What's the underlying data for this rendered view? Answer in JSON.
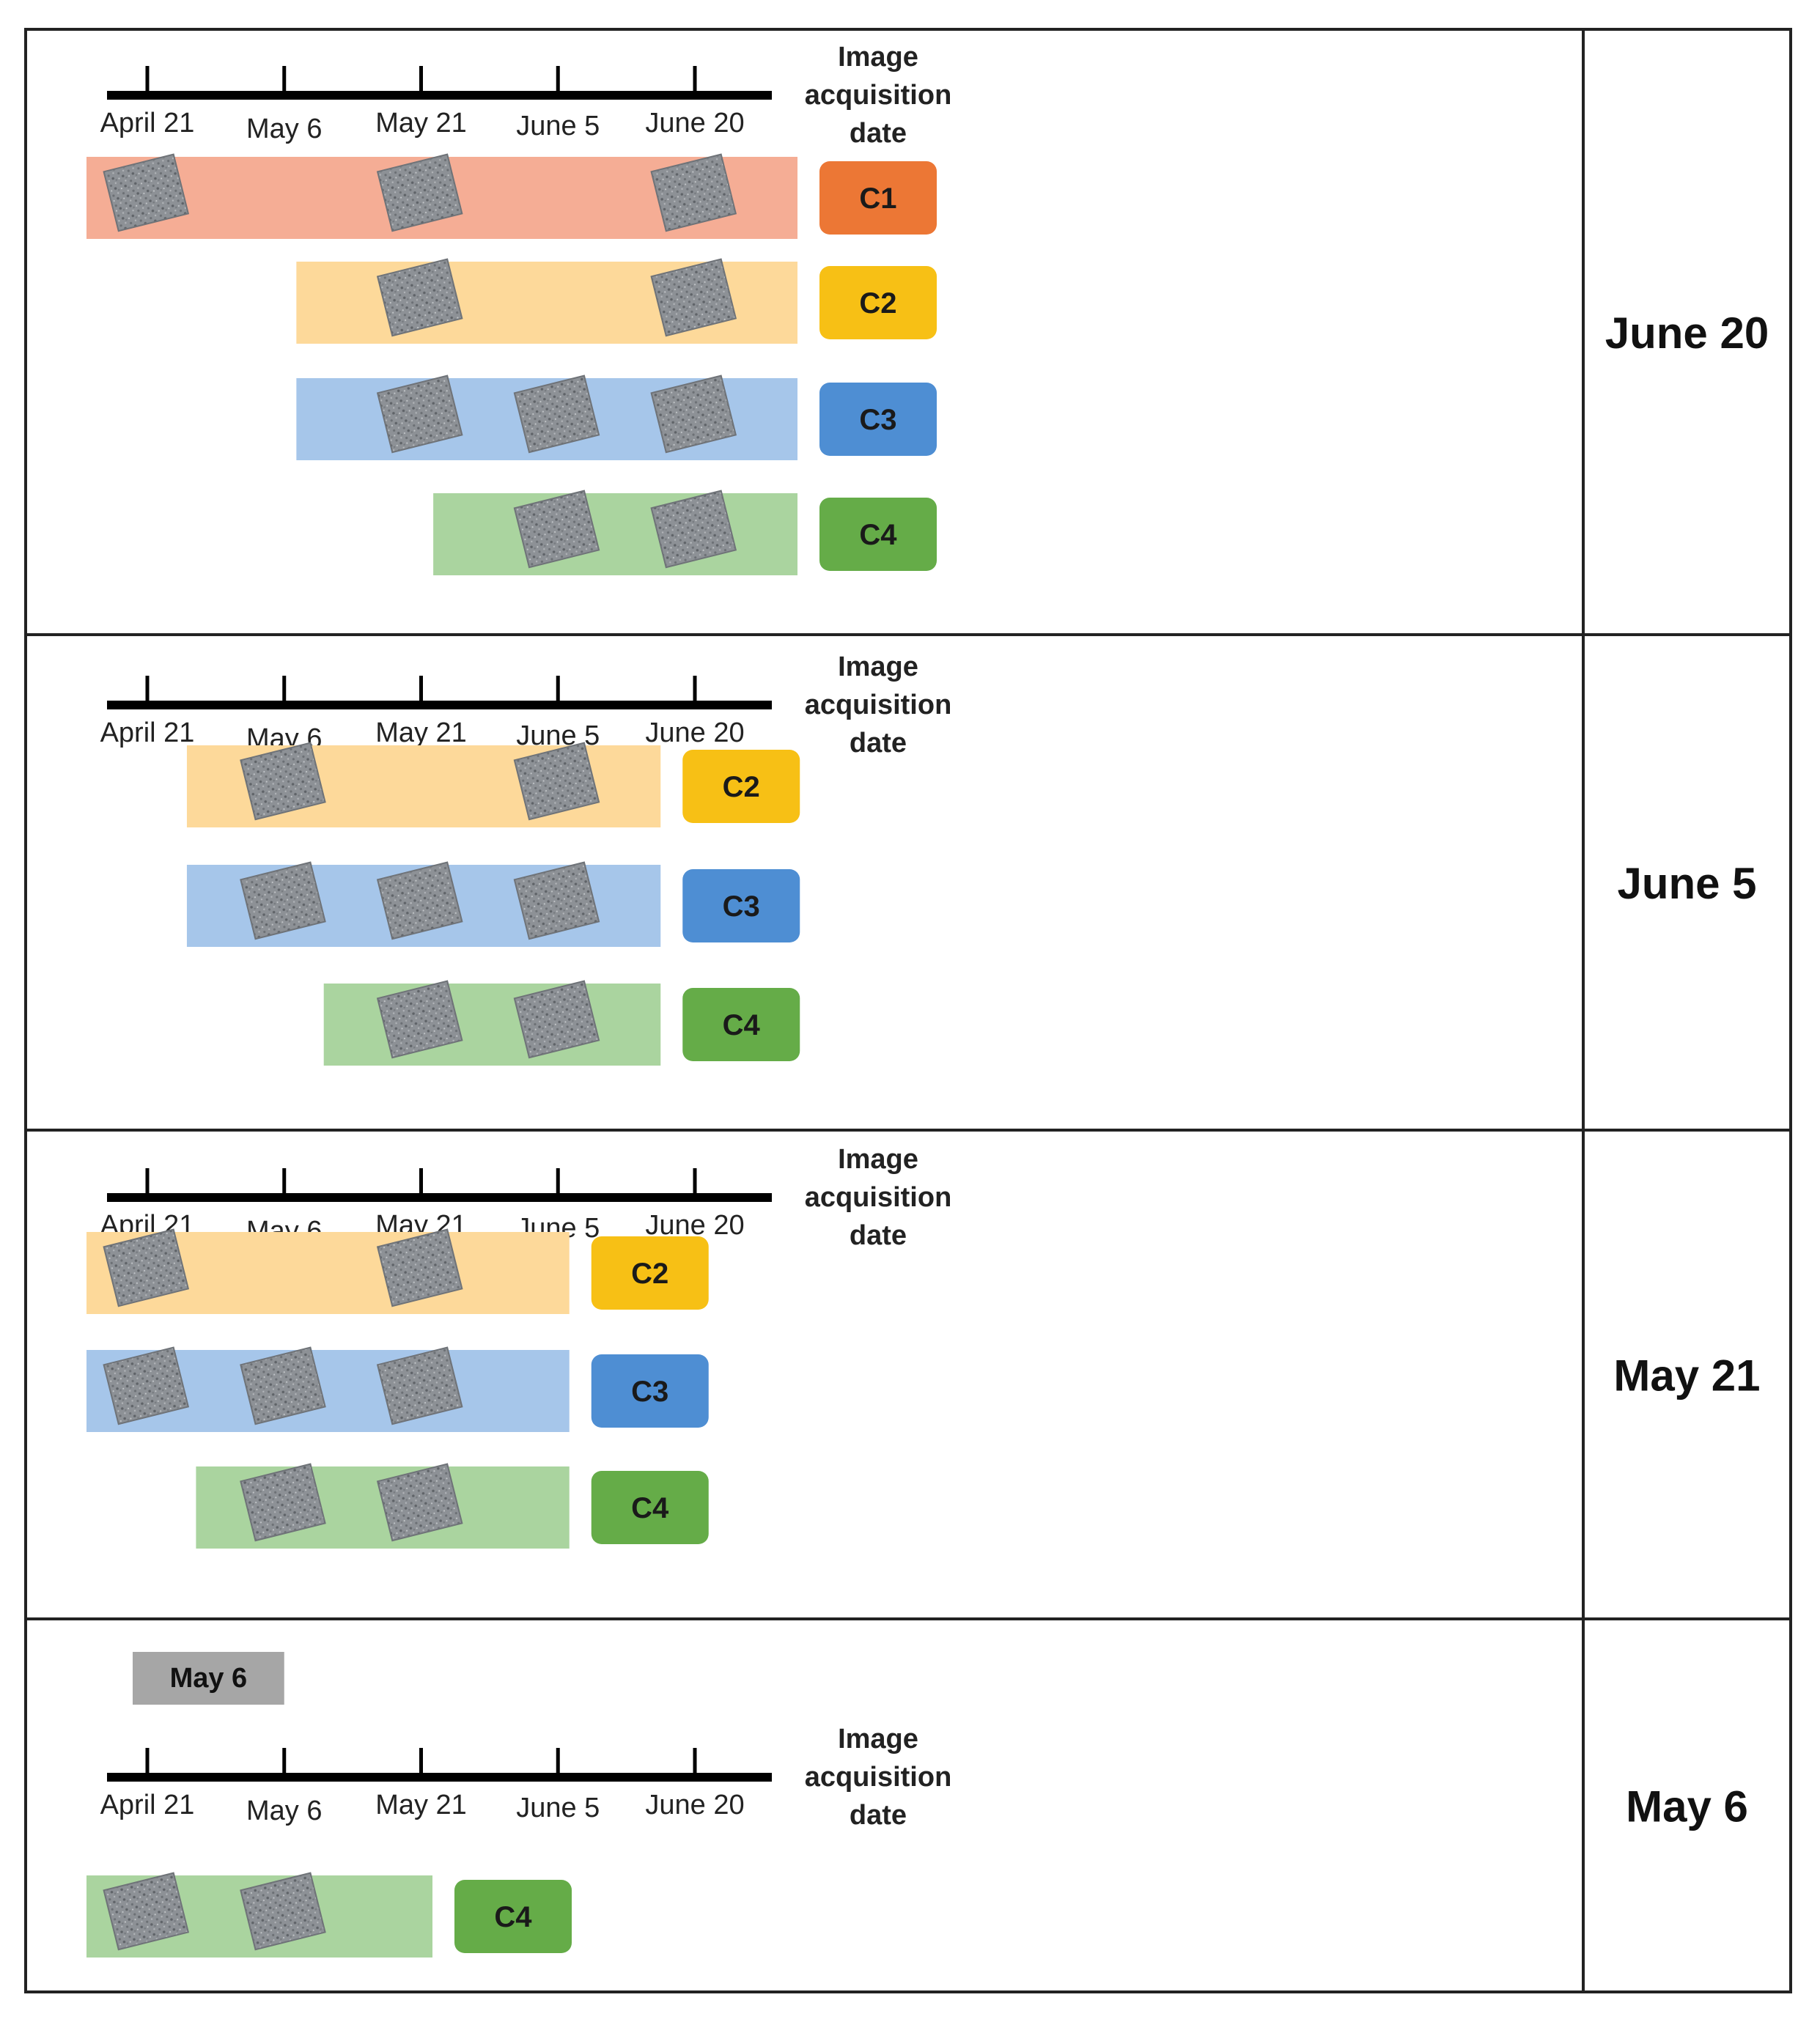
{
  "axis": {
    "ticks": [
      "April 21",
      "May 6",
      "May 21",
      "June 5",
      "June 20"
    ],
    "caption": [
      "Image",
      "acquisition",
      "date"
    ]
  },
  "classes": {
    "C1": {
      "label": "C1",
      "bar_color": "#f5ad95",
      "badge_color": "#ec7735"
    },
    "C2": {
      "label": "C2",
      "bar_color": "#fdd99a",
      "badge_color": "#f7c015"
    },
    "C3": {
      "label": "C3",
      "bar_color": "#a6c6ea",
      "badge_color": "#4e8ed3"
    },
    "C4": {
      "label": "C4",
      "bar_color": "#aad49f",
      "badge_color": "#65ac48"
    }
  },
  "panels": [
    {
      "date_label": "June 20",
      "rows": [
        {
          "class": "C1",
          "start": "April 21",
          "end": "June 20",
          "images": [
            "April 21",
            "May 21",
            "June 20"
          ]
        },
        {
          "class": "C2",
          "start": "May 14",
          "end": "June 20",
          "images": [
            "May 21",
            "June 20"
          ]
        },
        {
          "class": "C3",
          "start": "May 14",
          "end": "June 20",
          "images": [
            "May 21",
            "June 5",
            "June 20"
          ]
        },
        {
          "class": "C4",
          "start": "May 29",
          "end": "June 20",
          "images": [
            "June 5",
            "June 20"
          ]
        }
      ]
    },
    {
      "date_label": "June 5",
      "rows": [
        {
          "class": "C2",
          "start": "May 2",
          "end": "June 5",
          "images": [
            "May 6",
            "June 5"
          ]
        },
        {
          "class": "C3",
          "start": "May 2",
          "end": "June 5",
          "images": [
            "May 6",
            "May 21",
            "June 5"
          ]
        },
        {
          "class": "C4",
          "start": "May 17",
          "end": "June 5",
          "images": [
            "May 21",
            "June 5"
          ]
        }
      ]
    },
    {
      "date_label": "May 21",
      "rows": [
        {
          "class": "C2",
          "start": "April 21",
          "end": "May 26",
          "images": [
            "April 21",
            "May 21"
          ]
        },
        {
          "class": "C3",
          "start": "April 21",
          "end": "May 26",
          "images": [
            "April 21",
            "May 6",
            "May 21"
          ]
        },
        {
          "class": "C4",
          "start": "May 3",
          "end": "May 26",
          "images": [
            "May 6",
            "May 21"
          ]
        }
      ]
    },
    {
      "date_label": "May 6",
      "marker": "May 6",
      "rows": [
        {
          "class": "C4",
          "start": "April 21",
          "end": "May 11",
          "images": [
            "April 21",
            "May 6"
          ]
        }
      ]
    }
  ]
}
